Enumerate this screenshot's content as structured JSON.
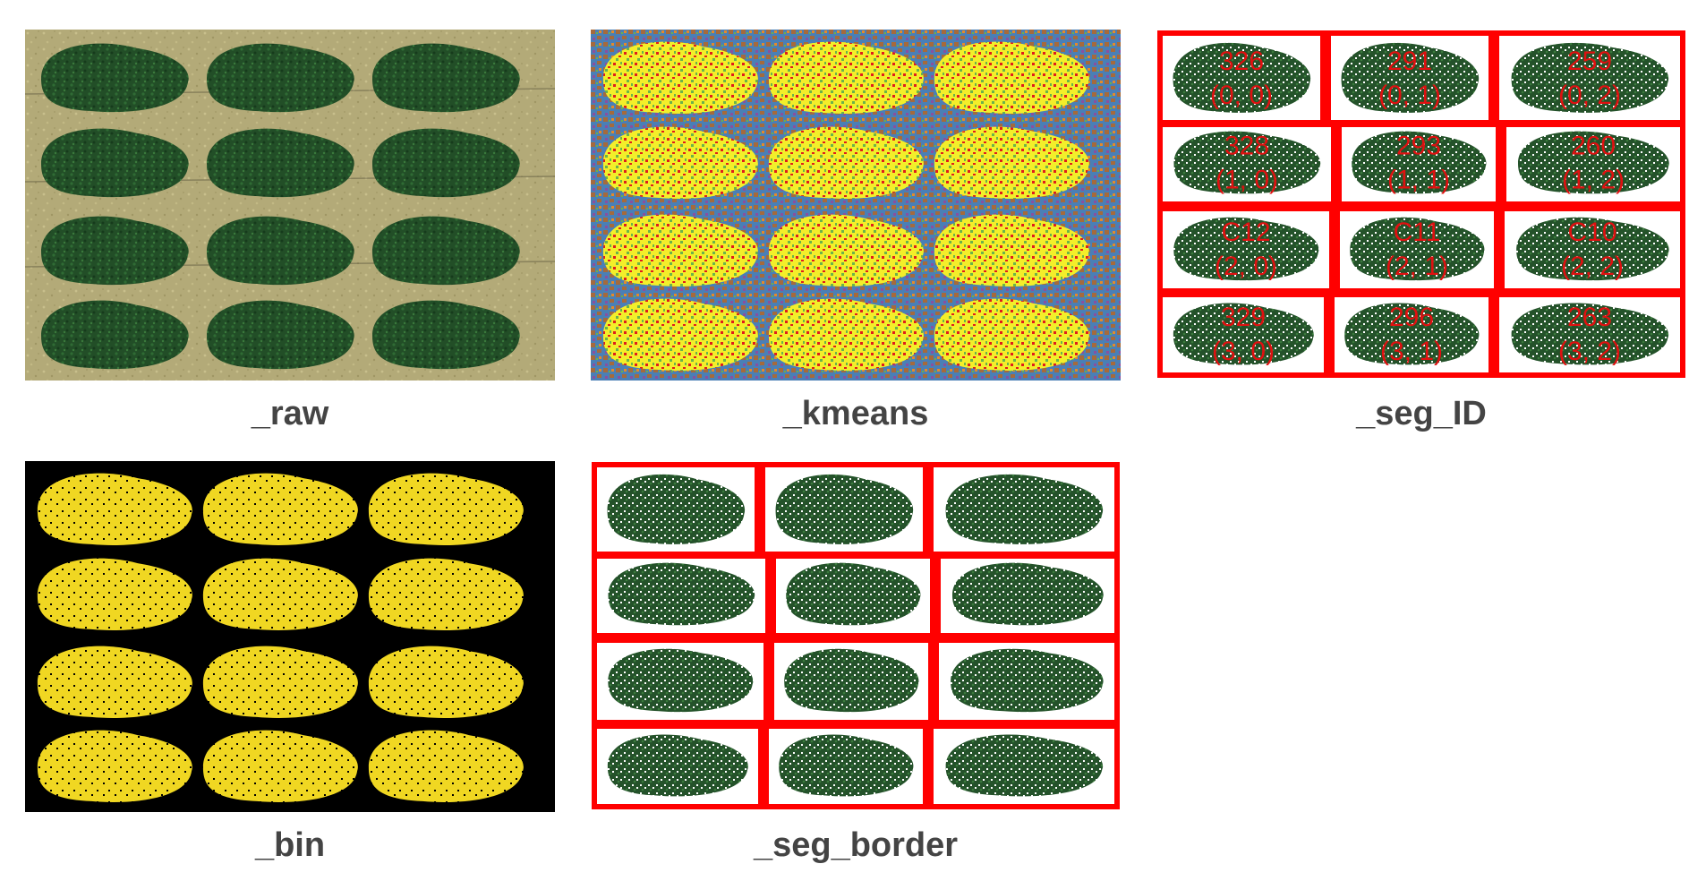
{
  "panels": {
    "raw": {
      "caption": "_raw"
    },
    "kmeans": {
      "caption": "_kmeans"
    },
    "seg_id": {
      "caption": "_seg_ID",
      "cells": [
        {
          "id": "326",
          "pos": "(0, 0)"
        },
        {
          "id": "291",
          "pos": "(0, 1)"
        },
        {
          "id": "259",
          "pos": "(0, 2)"
        },
        {
          "id": "328",
          "pos": "(1, 0)"
        },
        {
          "id": "293",
          "pos": "(1, 1)"
        },
        {
          "id": "260",
          "pos": "(1, 2)"
        },
        {
          "id": "C12",
          "pos": "(2, 0)"
        },
        {
          "id": "C11",
          "pos": "(2, 1)"
        },
        {
          "id": "C10",
          "pos": "(2, 2)"
        },
        {
          "id": "329",
          "pos": "(3, 0)"
        },
        {
          "id": "296",
          "pos": "(3, 1)"
        },
        {
          "id": "263",
          "pos": "(3, 2)"
        }
      ]
    },
    "bin": {
      "caption": "_bin"
    },
    "seg_border": {
      "caption": "_seg_border"
    }
  },
  "colors": {
    "soil": "#b3aa78",
    "plant_dark": "#1f4a25",
    "plant_mid": "#2f6b34",
    "kmeans_bg_blue": "#4a7fb6",
    "kmeans_bg_brown": "#a56a3c",
    "kmeans_bg_purple": "#8a4fa0",
    "kmeans_yellow": "#f3ee2a",
    "kmeans_red": "#e01c1c",
    "kmeans_green": "#6ab34a",
    "bin_bg": "#000000",
    "bin_fg": "#f0d722",
    "border_red": "#ff0000",
    "caption_gray": "#444444",
    "id_label_red": "#e01010"
  }
}
